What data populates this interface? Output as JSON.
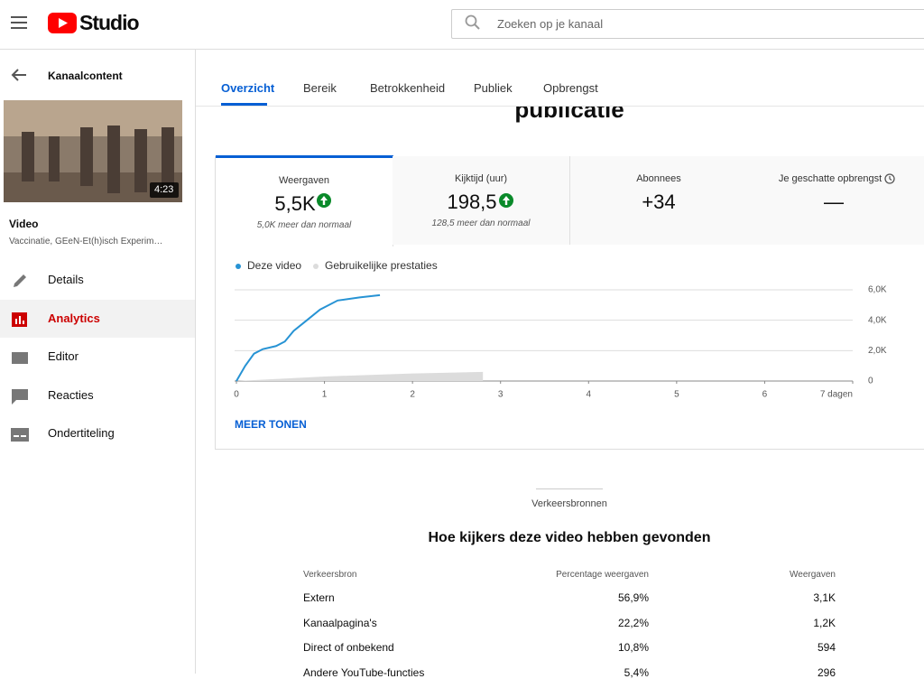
{
  "header": {
    "logo": "Studio",
    "search_placeholder": "Zoeken op je kanaal"
  },
  "sidebar": {
    "back_label": "Kanaalcontent",
    "video_duration": "4:23",
    "video_label": "Video",
    "video_title": "Vaccinatie, GEeN-Et(h)isch Experim…",
    "nav": [
      "Details",
      "Analytics",
      "Editor",
      "Reacties",
      "Ondertiteling"
    ]
  },
  "tabs": [
    "Overzicht",
    "Bereik",
    "Betrokkenheid",
    "Publiek",
    "Opbrengst"
  ],
  "heading": "publicatie",
  "metrics": [
    {
      "label": "Weergaven",
      "value": "5,5K",
      "note": "5,0K meer dan normaal"
    },
    {
      "label": "Kijktijd (uur)",
      "value": "198,5",
      "note": "128,5 meer dan normaal"
    },
    {
      "label": "Abonnees",
      "value": "+34"
    },
    {
      "label": "Je geschatte opbrengst",
      "value": "—"
    }
  ],
  "chart": {
    "type": "line",
    "series": [
      {
        "name": "Deze video",
        "color": "#2793d4",
        "x": [
          0,
          0.1,
          0.2,
          0.3,
          0.45,
          0.55,
          0.65,
          0.8,
          0.95,
          1.15,
          1.4,
          1.63
        ],
        "values": [
          0,
          1000,
          1800,
          2100,
          2300,
          2600,
          3300,
          4000,
          4700,
          5300,
          5500,
          5650
        ]
      },
      {
        "name": "Gebruikelijke prestaties",
        "color": "#dcdcdc",
        "x": [
          0,
          1,
          2,
          2.8
        ],
        "values": [
          0,
          300,
          500,
          600
        ]
      }
    ],
    "xlim": [
      0,
      7
    ],
    "xticks": [
      0,
      1,
      2,
      3,
      4,
      5,
      6,
      {
        "value": 7,
        "label": "7 dagen"
      }
    ],
    "ylim": [
      0,
      6000
    ],
    "yticks": [
      0,
      {
        "value": 2000,
        "label": "2,0K"
      },
      {
        "value": 4000,
        "label": "4,0K"
      },
      {
        "value": 6000,
        "label": "6,0K"
      }
    ],
    "grid": true
  },
  "more_button": "MEER TONEN",
  "traffic": {
    "eyebrow": "Verkeersbronnen",
    "title": "Hoe kijkers deze video hebben gevonden",
    "columns": [
      "Verkeersbron",
      "Percentage weergaven",
      "Weergaven"
    ],
    "rows": [
      [
        "Extern",
        "56,9%",
        "3,1K"
      ],
      [
        "Kanaalpagina's",
        "22,2%",
        "1,2K"
      ],
      [
        "Direct of onbekend",
        "10,8%",
        "594"
      ],
      [
        "Andere YouTube-functies",
        "5,4%",
        "296"
      ]
    ]
  }
}
